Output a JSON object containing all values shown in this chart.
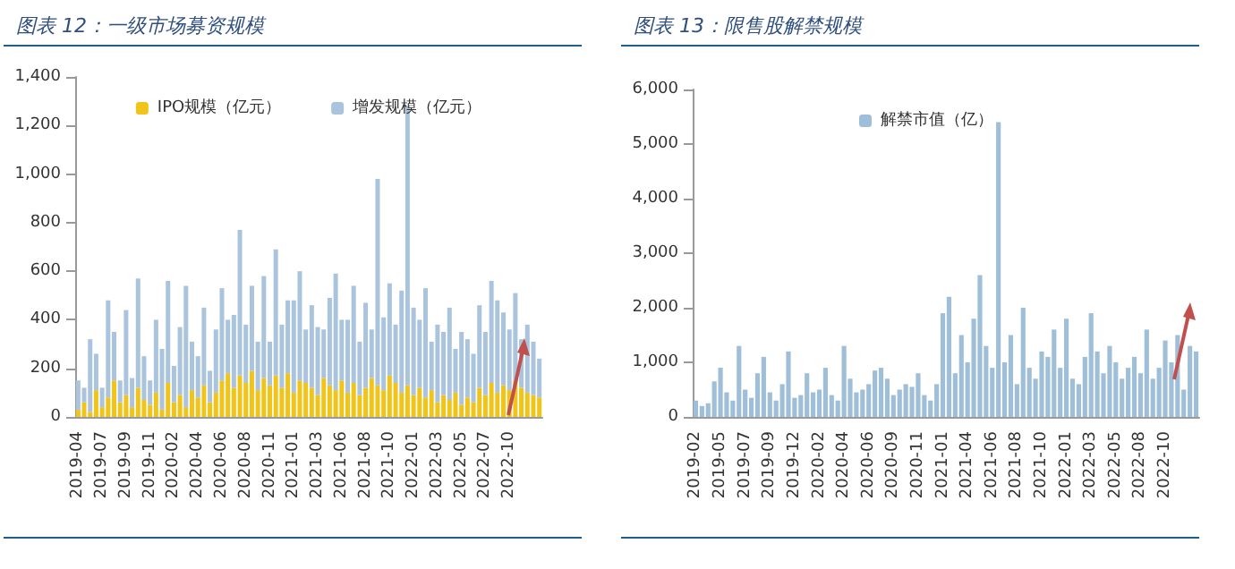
{
  "chart_data": [
    {
      "type": "bar",
      "title": "图表 12：一级市场募资规模",
      "stacked": true,
      "legend": "top",
      "grid": false,
      "categories": [
        "2019-04",
        null,
        null,
        null,
        "2019-07",
        null,
        null,
        null,
        "2019-09",
        null,
        null,
        null,
        "2019-11",
        null,
        null,
        null,
        "2020-02",
        null,
        null,
        null,
        "2020-04",
        null,
        null,
        null,
        "2020-06",
        null,
        null,
        null,
        "2020-08",
        null,
        null,
        null,
        "2020-11",
        null,
        null,
        null,
        "2021-01",
        null,
        null,
        null,
        "2021-03",
        null,
        null,
        null,
        "2021-06",
        null,
        null,
        null,
        "2021-08",
        null,
        null,
        null,
        "2021-10",
        null,
        null,
        null,
        "2022-01",
        null,
        null,
        null,
        "2022-03",
        null,
        null,
        null,
        "2022-05",
        null,
        null,
        null,
        "2022-07",
        null,
        null,
        null,
        "2022-10",
        null,
        null,
        null,
        null,
        null
      ],
      "series": [
        {
          "name": "IPO规模（亿元）",
          "color": "#f0c419",
          "values": [
            30,
            60,
            20,
            110,
            40,
            80,
            150,
            60,
            90,
            40,
            120,
            70,
            50,
            100,
            30,
            140,
            60,
            90,
            40,
            110,
            80,
            130,
            60,
            100,
            150,
            180,
            120,
            170,
            140,
            190,
            110,
            160,
            130,
            170,
            120,
            180,
            100,
            150,
            140,
            120,
            90,
            160,
            130,
            110,
            150,
            100,
            140,
            90,
            120,
            160,
            130,
            110,
            170,
            140,
            100,
            130,
            90,
            120,
            80,
            110,
            60,
            90,
            70,
            100,
            50,
            80,
            60,
            120,
            90,
            140,
            100,
            130,
            110,
            150,
            120,
            100,
            90,
            80
          ]
        },
        {
          "name": "增发规模（亿元）",
          "color": "#a9c4dc",
          "values": [
            120,
            60,
            300,
            150,
            80,
            400,
            200,
            90,
            350,
            120,
            450,
            180,
            100,
            300,
            250,
            420,
            150,
            280,
            500,
            200,
            170,
            320,
            130,
            260,
            380,
            220,
            300,
            600,
            240,
            350,
            200,
            420,
            180,
            520,
            260,
            300,
            380,
            450,
            220,
            340,
            280,
            200,
            360,
            480,
            250,
            300,
            400,
            220,
            350,
            200,
            850,
            300,
            380,
            240,
            420,
            1150,
            360,
            280,
            450,
            200,
            320,
            260,
            380,
            180,
            300,
            240,
            200,
            340,
            260,
            420,
            380,
            300,
            250,
            360,
            200,
            280,
            220,
            160
          ]
        }
      ],
      "ylim": [
        0,
        1400
      ],
      "yticks": [
        0,
        {
          "value": 200,
          "label": "200"
        },
        {
          "value": 400,
          "label": "400"
        },
        {
          "value": 600,
          "label": "600"
        },
        {
          "value": 800,
          "label": "800"
        },
        {
          "value": 1000,
          "label": "1,000"
        },
        {
          "value": 1200,
          "label": "1,200"
        },
        {
          "value": 1400,
          "label": "1,400"
        }
      ]
    },
    {
      "type": "bar",
      "title": "图表 13：限售股解禁规模",
      "legend": "top",
      "grid": false,
      "categories": [
        "2019-02",
        null,
        null,
        null,
        "2019-05",
        null,
        null,
        null,
        "2019-07",
        null,
        null,
        null,
        "2019-09",
        null,
        null,
        null,
        "2019-12",
        null,
        null,
        null,
        "2020-02",
        null,
        null,
        null,
        "2020-04",
        null,
        null,
        null,
        "2020-06",
        null,
        null,
        null,
        "2020-09",
        null,
        null,
        null,
        "2020-11",
        null,
        null,
        null,
        "2021-01",
        null,
        null,
        null,
        "2021-04",
        null,
        null,
        null,
        "2021-06",
        null,
        null,
        null,
        "2021-08",
        null,
        null,
        null,
        "2021-10",
        null,
        null,
        null,
        "2022-01",
        null,
        null,
        null,
        "2022-03",
        null,
        null,
        null,
        "2022-05",
        null,
        null,
        null,
        "2022-08",
        null,
        null,
        null,
        "2022-10",
        null,
        null,
        null,
        null,
        null
      ],
      "series": [
        {
          "name": "解禁市值（亿）",
          "color": "#9fbfd9",
          "values": [
            300,
            200,
            250,
            650,
            900,
            450,
            300,
            1300,
            500,
            350,
            800,
            1100,
            450,
            300,
            600,
            1200,
            350,
            400,
            800,
            450,
            500,
            900,
            400,
            300,
            1300,
            700,
            450,
            500,
            600,
            850,
            900,
            700,
            400,
            500,
            600,
            550,
            800,
            400,
            300,
            600,
            1900,
            2200,
            800,
            1500,
            1000,
            1800,
            2600,
            1300,
            900,
            5400,
            1000,
            1500,
            600,
            2000,
            900,
            700,
            1200,
            1100,
            1600,
            900,
            1800,
            700,
            600,
            1100,
            1900,
            1200,
            800,
            1300,
            1000,
            700,
            900,
            1100,
            800,
            1600,
            700,
            900,
            1400,
            1000,
            1500,
            500,
            1300,
            1200
          ]
        }
      ],
      "ylim": [
        0,
        6000
      ],
      "yticks": [
        0,
        {
          "value": 1000,
          "label": "1,000"
        },
        {
          "value": 2000,
          "label": "2,000"
        },
        {
          "value": 3000,
          "label": "3,000"
        },
        {
          "value": 4000,
          "label": "4,000"
        },
        {
          "value": 5000,
          "label": "5,000"
        },
        {
          "value": 6000,
          "label": "6,000"
        }
      ]
    }
  ]
}
